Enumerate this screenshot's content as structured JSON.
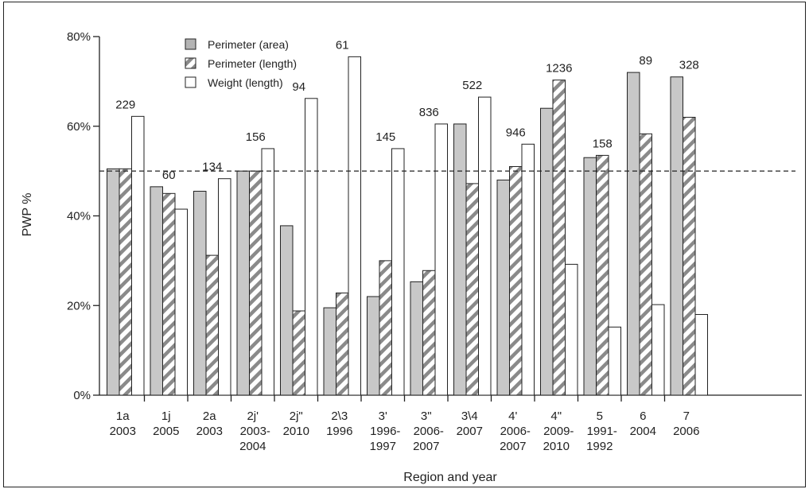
{
  "chart_data": {
    "type": "bar",
    "title": "",
    "xlabel": "Region and year",
    "ylabel": "PWP %",
    "ylim": [
      0,
      80
    ],
    "yticks": [
      "0%",
      "20%",
      "40%",
      "60%",
      "80%"
    ],
    "grid": false,
    "legend_position": "top-left",
    "reference_line": {
      "value": 50,
      "style": "dashed"
    },
    "categories": [
      [
        "1a",
        "2003"
      ],
      [
        "1j",
        "2005"
      ],
      [
        "2a",
        "2003"
      ],
      [
        "2j'",
        "2003-",
        "2004"
      ],
      [
        "2j\"",
        "2010"
      ],
      [
        "2\\3",
        "1996"
      ],
      [
        "3'",
        "1996-",
        "1997"
      ],
      [
        "3\"",
        "2006-",
        "2007"
      ],
      [
        "3\\4",
        "2007"
      ],
      [
        "4'",
        "2006-",
        "2007"
      ],
      [
        "4\"",
        "2009-",
        "2010"
      ],
      [
        "5",
        "1991-",
        "1992"
      ],
      [
        "6",
        "2004"
      ],
      [
        "7",
        "2006"
      ]
    ],
    "series": [
      {
        "name": "Perimeter (area)",
        "fill": "#c8c8c8",
        "pattern": "solid",
        "values": [
          50.5,
          46.5,
          45.5,
          50,
          37.8,
          19.5,
          22,
          25.3,
          60.5,
          48,
          64,
          53,
          72,
          71
        ]
      },
      {
        "name": "Perimeter (length)",
        "fill": "#ffffff",
        "pattern": "hatched",
        "values": [
          50.5,
          45,
          31.2,
          50,
          18.8,
          22.8,
          30,
          27.8,
          47.2,
          51,
          70.3,
          53.5,
          58.3,
          62
        ]
      },
      {
        "name": "Weight (length)",
        "fill": "#ffffff",
        "pattern": "solid",
        "values": [
          62.2,
          41.5,
          48.3,
          55,
          66.2,
          75.5,
          55,
          60.5,
          66.5,
          56,
          29.2,
          15.2,
          20.2,
          18
        ]
      }
    ],
    "annotations": [
      "229",
      "60",
      "134",
      "156",
      "94",
      "61",
      "145",
      "836",
      "522",
      "946",
      "1236",
      "158",
      "89",
      "328"
    ]
  }
}
